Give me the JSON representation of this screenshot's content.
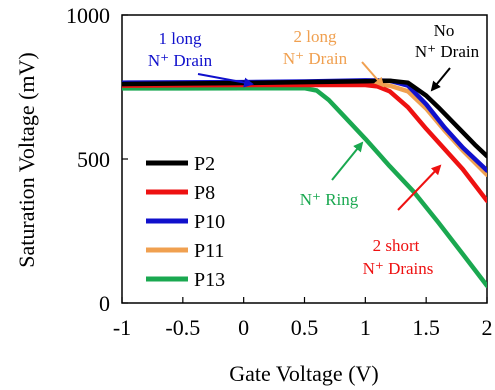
{
  "chart_data": {
    "type": "line",
    "xlabel": "Gate Voltage (V)",
    "ylabel": "Saturation Voltage (mV)",
    "xlim": [
      -1,
      2
    ],
    "ylim": [
      0,
      1000
    ],
    "x_ticks": [
      "-1",
      "-0.5",
      "0",
      "0.5",
      "1",
      "1.5",
      "2"
    ],
    "y_ticks": [
      "0",
      "500",
      "1000"
    ],
    "grid": false,
    "legend_position": "lower-left",
    "series": [
      {
        "name": "P2",
        "color": "#000000",
        "x": [
          -1,
          -0.5,
          0,
          0.5,
          1.0,
          1.2,
          1.35,
          1.5,
          1.6,
          1.75,
          1.9,
          2.0
        ],
        "y": [
          760,
          762,
          764,
          767,
          770,
          772,
          765,
          720,
          680,
          615,
          550,
          510
        ]
      },
      {
        "name": "P8",
        "color": "#ee1111",
        "x": [
          -1,
          -0.5,
          0,
          0.5,
          1.0,
          1.1,
          1.2,
          1.35,
          1.5,
          1.65,
          1.8,
          2.0
        ],
        "y": [
          755,
          756,
          757,
          757,
          757,
          752,
          735,
          680,
          605,
          535,
          465,
          355
        ]
      },
      {
        "name": "P10",
        "color": "#1010cc",
        "x": [
          -1,
          -0.5,
          0,
          0.5,
          1.0,
          1.2,
          1.35,
          1.5,
          1.65,
          1.8,
          2.0
        ],
        "y": [
          765,
          766,
          767,
          769,
          773,
          772,
          755,
          690,
          610,
          540,
          460
        ]
      },
      {
        "name": "P11",
        "color": "#f0a050",
        "x": [
          -1,
          -0.5,
          0,
          0.5,
          1.0,
          1.2,
          1.35,
          1.5,
          1.65,
          1.8,
          2.0
        ],
        "y": [
          757,
          758,
          758,
          759,
          760,
          755,
          735,
          675,
          600,
          530,
          445
        ]
      },
      {
        "name": "P13",
        "color": "#1aa850",
        "x": [
          -1,
          -0.5,
          0,
          0.5,
          0.6,
          0.7,
          0.8,
          1.0,
          1.2,
          1.4,
          1.6,
          1.8,
          2.0
        ],
        "y": [
          745,
          745,
          746,
          746,
          738,
          705,
          660,
          570,
          475,
          385,
          280,
          170,
          60
        ]
      }
    ],
    "annotations": [
      {
        "lines": [
          "1 long",
          "N⁺ Drain"
        ],
        "color": "#1010cc"
      },
      {
        "lines": [
          "2 long",
          "N⁺ Drain"
        ],
        "color": "#f0a050"
      },
      {
        "lines": [
          "No",
          "N⁺ Drain"
        ],
        "color": "#000000"
      },
      {
        "lines": [
          "N⁺ Ring"
        ],
        "color": "#1aa850"
      },
      {
        "lines": [
          "2 short",
          "N⁺ Drains"
        ],
        "color": "#ee1111"
      }
    ]
  }
}
